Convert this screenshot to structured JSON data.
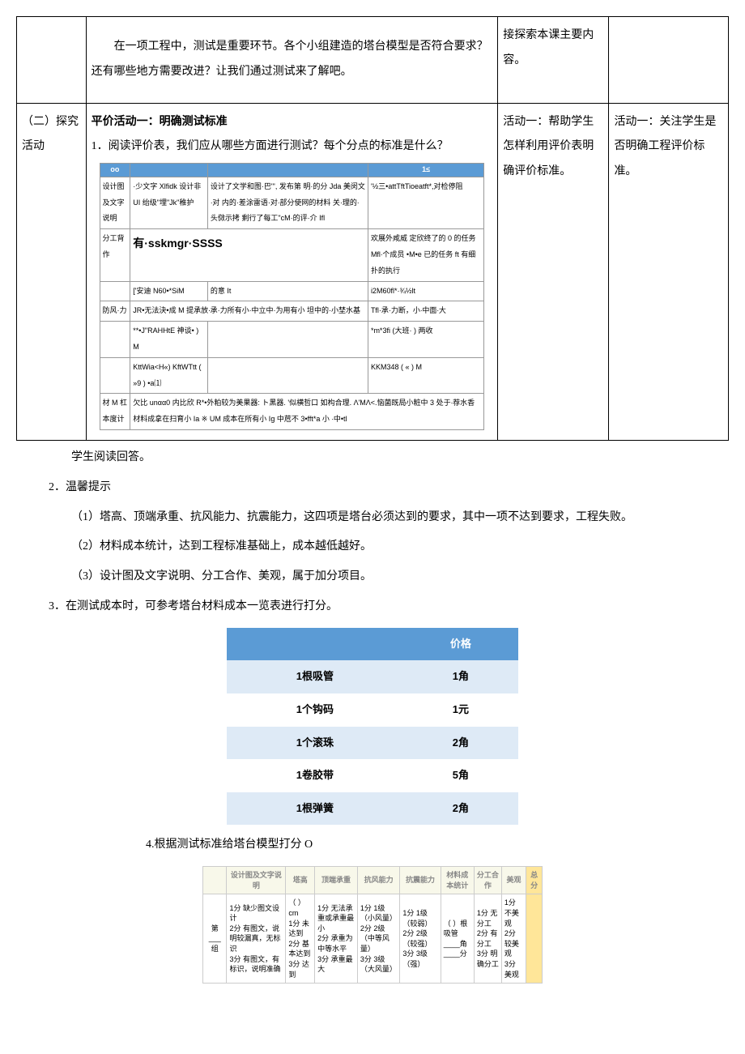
{
  "row1": {
    "main": "在一项工程中，测试是重要环节。各个小组建造的塔台模型是否符合要求？还有哪些地方需要改进？让我们通过测试来了解吧。",
    "right1": "接探索本课主要内容。"
  },
  "row2": {
    "label": "（二）探究活动",
    "activity_title": "平价活动一：明确测试标准",
    "q1": "1．阅读评价表，我们应从哪些方面进行测试？每个分点的标准是什么？",
    "right1": "活动一：帮助学生怎样利用评价表明确评价标准。",
    "right2": "活动一：关注学生是否明确工程评价标准。"
  },
  "eval_mini": {
    "headers": [
      "oo",
      "",
      "",
      "1≤"
    ],
    "rows": [
      [
        "设计图及文字说明",
        "·少文字 Xlfidk 设计非 UI 绐级\"埋\"Jk\"稚护",
        "设计了文学和图·巴\"', 发布第 明·的分 Jda 美闵文∙对 内的·差涂雷语·对∙部分使网的材料 关·理的∙头傚示拷 剩行了每工\"cM·的评·介 Ifl",
        "'½三•attTftTioeatft*,对检停阻"
      ],
      [
        "分工背作",
        "有·sskmgr·SSSS",
        "",
        "欢展外咸威 定欣终了的 0 的任务 Mfl∙个成员 •M•e 已的任务 ft 有细扑的执行"
      ],
      [
        "",
        "['安迪 N60•*SiM",
        "的意 It",
        "i2M60fl*·¾½lt"
      ],
      [
        "防风·力",
        "JR•无法決•成 M 提承放∙承·力所有小·中立中·为用有小 坦中的·小埜水基",
        "",
        "Tfl·承·力断，小∙中面∙大"
      ],
      [
        "",
        "**•J\"RAHHtE 神谈• ) M",
        "",
        "*m*3fi (大班· ) 两收"
      ],
      [
        "",
        "KttWia<H«) KftWTtt ( »9 ) •a⑴",
        "",
        "KKM348 ( « ) M"
      ],
      [
        "材 M 杠本度计",
        "欠比 unαα0 内比欣 R*•外粕较为美果器: ト黑器. '似横哲口 如构合理. Λ'MΛ<.恼菌既局小粧中 3 处于∙荐水香 材料成拿在扫育小 Ia ※ UM 成本在所有小 Ig 中苊不     3•fft*a     小 ∙中•tl",
        "",
        ""
      ]
    ]
  },
  "body": {
    "p_read": "学生阅读回答。",
    "p2": "2．温馨提示",
    "p2_1": "（1）塔高、顶端承重、抗风能力、抗震能力，这四项是塔台必须达到的要求，其中一项不达到要求，工程失败。",
    "p2_2": "（2）材料成本统计，达到工程标准基础上，成本越低越好。",
    "p2_3": "（3）设计图及文字说明、分工合作、美观，属于加分项目。",
    "p3": "3．在测试成本时，可参考塔台材料成本一览表进行打分。",
    "p4": "4.根据测试标准给塔台模型打分     O"
  },
  "price_table": {
    "header_price": "价格",
    "rows": [
      {
        "item": "1根吸管",
        "price": "1角",
        "alt": true
      },
      {
        "item": "1个钩码",
        "price": "1元",
        "alt": false
      },
      {
        "item": "1个滚珠",
        "price": "2角",
        "alt": true
      },
      {
        "item": "1卷胶带",
        "price": "5角",
        "alt": false
      },
      {
        "item": "1根弹簧",
        "price": "2角",
        "alt": true
      }
    ]
  },
  "score_table": {
    "headers": [
      "",
      "设计图及文字说明",
      "塔高",
      "顶端承重",
      "抗风能力",
      "抗震能力",
      "材料成本统计",
      "分工合作",
      "美观",
      "总分"
    ],
    "row_label": "第___组",
    "cells": {
      "design": "1分 缺少图文设计\n2分 有图文，说明较漏真，无标识\n3分 有图文，有标识，说明准确",
      "height": "（ ）cm\n1分 未达到\n2分 基本达到\n3分 达到",
      "weight": "1分 无法承重或承重最小\n2分 承重为中等水平\n3分 承重最大",
      "wind": "1分 1级（小风量）\n2分 2级（中等风量）\n3分 3级（大风量）",
      "quake": "1分 1级（较弱）\n2分 2级（较强）\n3分 3级（强）",
      "cost": "（ ）根吸管\n____角\n____分",
      "coop": "1分 无分工\n2分 有分工\n3分 明确分工",
      "beauty": "1分 不美观\n2分 较美观\n3分 美观",
      "total": ""
    }
  }
}
